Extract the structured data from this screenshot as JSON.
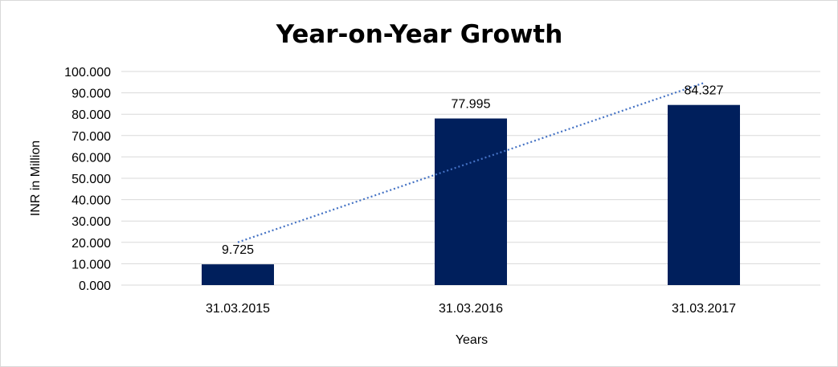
{
  "chart_data": {
    "type": "bar",
    "title": "Year-on-Year Growth",
    "xlabel": "Years",
    "ylabel": "INR in Million",
    "categories": [
      "31.03.2015",
      "31.03.2016",
      "31.03.2017"
    ],
    "values": [
      9.725,
      77.995,
      84.327
    ],
    "value_labels": [
      "9.725",
      "77.995",
      "84.327"
    ],
    "y_ticks": [
      "0.000",
      "10.000",
      "20.000",
      "30.000",
      "40.000",
      "50.000",
      "60.000",
      "70.000",
      "80.000",
      "90.000",
      "100.000"
    ],
    "ylim": [
      0,
      100
    ],
    "grid": true,
    "trendline": "linear, dotted",
    "colors": {
      "bar": "#001f5c",
      "trendline": "#4472c4",
      "grid": "#d9d9d9"
    }
  }
}
